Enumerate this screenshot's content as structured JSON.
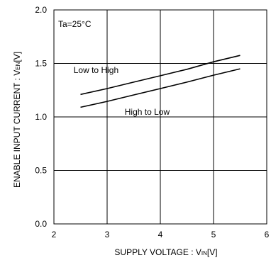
{
  "chart_data": {
    "type": "line",
    "title": "",
    "xlabel": "SUPPLY VOLTAGE : V",
    "xlabel_sub": "IN",
    "xlabel_unit": "[V]",
    "ylabel": "ENABLE INPUT CURRENT : V",
    "ylabel_sub": "EN",
    "ylabel_unit": "[V]",
    "xlim": [
      2,
      6
    ],
    "ylim": [
      0.0,
      2.0
    ],
    "x_ticks": [
      "2",
      "3",
      "4",
      "5",
      "6"
    ],
    "x_tick_values": [
      2,
      3,
      4,
      5,
      6
    ],
    "y_ticks": [
      "0.0",
      "0.5",
      "1.0",
      "1.5",
      "2.0"
    ],
    "y_tick_values": [
      0.0,
      0.5,
      1.0,
      1.5,
      2.0
    ],
    "grid": true,
    "condition_label": "Ta=25°C",
    "series": [
      {
        "name": "Low to High",
        "x": [
          2.5,
          3.0,
          3.5,
          4.0,
          4.5,
          5.0,
          5.5
        ],
        "y": [
          1.21,
          1.265,
          1.325,
          1.385,
          1.445,
          1.515,
          1.575
        ]
      },
      {
        "name": "High to Low",
        "x": [
          2.5,
          3.0,
          3.5,
          4.0,
          4.5,
          5.0,
          5.5
        ],
        "y": [
          1.09,
          1.145,
          1.205,
          1.265,
          1.325,
          1.39,
          1.45
        ]
      }
    ],
    "colors": {
      "line": "#000000",
      "grid": "#000000",
      "frame": "#000000"
    }
  }
}
